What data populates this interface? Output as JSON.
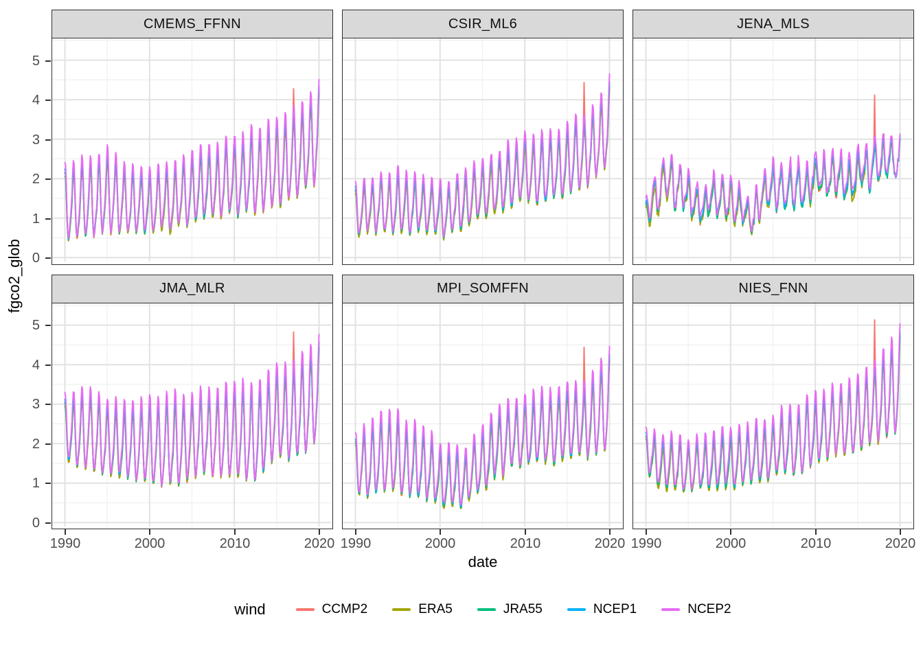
{
  "chart_data": {
    "type": "line",
    "title": "",
    "xlabel": "date",
    "ylabel": "fgco2_glob",
    "legend_title": "wind",
    "legend_position": "bottom",
    "grid": true,
    "x_ticks": [
      1990,
      2000,
      2010,
      2020
    ],
    "x_minor_ticks": [
      1995,
      2005,
      2015
    ],
    "y_ticks": [
      0,
      1,
      2,
      3,
      4,
      5
    ],
    "y_minor_ticks": [
      0.5,
      1.5,
      2.5,
      3.5,
      4.5,
      5.5
    ],
    "xlim": [
      1988.5,
      2021.5
    ],
    "ylim": [
      -0.1,
      5.55
    ],
    "x_start": 1990,
    "x_end": 2020,
    "points_per_year": 12,
    "series": [
      {
        "name": "CCMP2",
        "color": "#F8766D",
        "level_shift": -0.06,
        "amp_scale": 1.0
      },
      {
        "name": "ERA5",
        "color": "#A3A500",
        "level_shift": -0.1,
        "amp_scale": 0.96
      },
      {
        "name": "JRA55",
        "color": "#00BF7D",
        "level_shift": -0.04,
        "amp_scale": 0.99
      },
      {
        "name": "NCEP1",
        "color": "#00B0F6",
        "level_shift": 0.02,
        "amp_scale": 1.02
      },
      {
        "name": "NCEP2",
        "color": "#E76BF3",
        "level_shift": 0.1,
        "amp_scale": 1.12
      }
    ],
    "envelope_years": [
      1990,
      1992.5,
      1995,
      1997.5,
      2000,
      2002.5,
      2005,
      2007.5,
      2010,
      2012.5,
      2015,
      2017.5,
      2020
    ],
    "facets": [
      {
        "name": "CMEMS_FFNN",
        "annual_peak": [
          2.15,
          2.45,
          2.55,
          2.2,
          2.15,
          2.25,
          2.5,
          2.65,
          2.95,
          3.0,
          3.3,
          3.6,
          4.15
        ],
        "annual_trough": [
          0.25,
          0.45,
          0.45,
          0.5,
          0.55,
          0.6,
          0.8,
          0.85,
          1.0,
          0.95,
          1.1,
          1.35,
          1.8
        ],
        "ccmp2_spike": {
          "year": 2017.0,
          "peak": 4.2
        },
        "noise": 0.1,
        "white_noise": 0.02,
        "wind_noise": 0.03
      },
      {
        "name": "CSIR_ML6",
        "annual_peak": [
          1.75,
          2.0,
          2.1,
          1.95,
          1.8,
          2.0,
          2.3,
          2.6,
          2.9,
          3.0,
          3.3,
          3.6,
          4.35
        ],
        "annual_trough": [
          0.5,
          0.6,
          0.55,
          0.6,
          0.45,
          0.6,
          0.9,
          1.1,
          1.3,
          1.3,
          1.5,
          1.8,
          2.2
        ],
        "ccmp2_spike": {
          "year": 2017.0,
          "peak": 4.55
        },
        "noise": 0.1,
        "white_noise": 0.02,
        "wind_noise": 0.03
      },
      {
        "name": "JENA_MLS",
        "annual_peak": [
          1.4,
          2.55,
          1.85,
          1.8,
          1.95,
          1.5,
          2.35,
          2.3,
          2.5,
          2.45,
          2.65,
          3.0,
          3.05
        ],
        "annual_trough": [
          0.9,
          1.35,
          1.0,
          0.95,
          1.0,
          0.6,
          1.3,
          1.25,
          1.45,
          1.5,
          1.65,
          1.95,
          2.15
        ],
        "ccmp2_spike": {
          "year": 2017.0,
          "peak": 4.15
        },
        "noise": 0.22,
        "white_noise": 0.1,
        "wind_noise": 0.05
      },
      {
        "name": "JMA_MLR",
        "annual_peak": [
          3.05,
          3.3,
          2.9,
          2.9,
          3.0,
          3.0,
          3.1,
          3.2,
          3.45,
          3.3,
          3.75,
          3.9,
          4.45
        ],
        "annual_trough": [
          1.5,
          1.2,
          1.05,
          1.0,
          0.9,
          0.7,
          1.0,
          1.05,
          1.1,
          0.85,
          1.45,
          1.5,
          1.85
        ],
        "ccmp2_spike": {
          "year": 2017.0,
          "peak": 4.85
        },
        "noise": 0.1,
        "white_noise": 0.02,
        "wind_noise": 0.03
      },
      {
        "name": "MPI_SOMFFN",
        "annual_peak": [
          2.1,
          2.5,
          2.6,
          2.3,
          1.9,
          1.7,
          2.3,
          2.8,
          3.0,
          3.15,
          3.3,
          3.5,
          4.3
        ],
        "annual_trough": [
          0.7,
          0.6,
          0.55,
          0.5,
          0.35,
          0.3,
          0.8,
          1.1,
          1.25,
          1.4,
          1.5,
          1.55,
          1.75
        ],
        "ccmp2_spike": {
          "year": 2017.0,
          "peak": 4.55
        },
        "noise": 0.12,
        "white_noise": 0.03,
        "wind_noise": 0.03
      },
      {
        "name": "NIES_FNN",
        "annual_peak": [
          2.2,
          2.1,
          2.0,
          2.1,
          2.25,
          2.3,
          2.55,
          2.9,
          3.1,
          3.3,
          3.6,
          4.0,
          4.85
        ],
        "annual_trough": [
          0.95,
          0.8,
          0.7,
          0.75,
          0.8,
          0.9,
          1.05,
          1.2,
          1.35,
          1.5,
          1.7,
          2.0,
          2.2
        ],
        "ccmp2_spike": {
          "year": 2017.0,
          "peak": 5.2
        },
        "noise": 0.1,
        "white_noise": 0.02,
        "wind_noise": 0.03
      }
    ],
    "style": {
      "panel_strip_fill": "#D9D9D9",
      "panel_border": "#2F2F2F",
      "grid_major": "#E2E2E2",
      "grid_minor": "#F0F0F0",
      "axis_text": "#4D4D4D"
    }
  }
}
